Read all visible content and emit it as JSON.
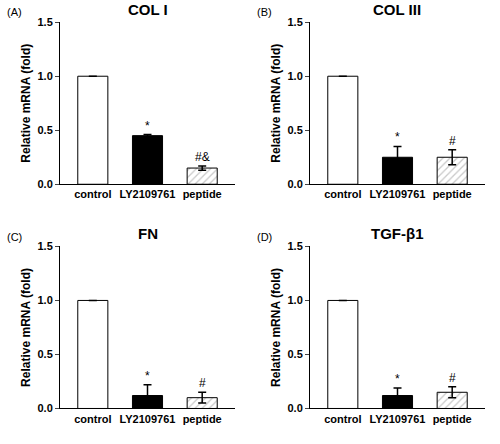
{
  "chart_data": [
    {
      "type": "bar",
      "label": "(A)",
      "title": "COL I",
      "y_label": "Relative mRNA (fold)",
      "categories": [
        "control",
        "LY2109761",
        "peptide"
      ],
      "values": [
        1.0,
        0.45,
        0.15
      ],
      "errors": [
        0,
        0.01,
        0.02
      ],
      "colors": [
        "#ffffff",
        "#000000",
        "#c8c8c8"
      ],
      "ylim": [
        0,
        1.5
      ],
      "yticks": [
        {
          "value": 0,
          "label": "0.0"
        },
        {
          "value": 0.5,
          "label": "0.5"
        },
        {
          "value": 1,
          "label": "1.0"
        },
        {
          "value": 1.5,
          "label": "1.5"
        }
      ],
      "grid": false,
      "annotations": [
        {
          "category": "LY2109761",
          "text": "*"
        },
        {
          "category": "peptide",
          "text": "#&"
        }
      ]
    },
    {
      "type": "bar",
      "label": "(B)",
      "title": "COL III",
      "y_label": "Relative mRNA (fold)",
      "categories": [
        "control",
        "LY2109761",
        "peptide"
      ],
      "values": [
        1.0,
        0.25,
        0.25
      ],
      "errors": [
        0,
        0.1,
        0.07
      ],
      "colors": [
        "#ffffff",
        "#000000",
        "#c8c8c8"
      ],
      "ylim": [
        0,
        1.5
      ],
      "yticks": [
        {
          "value": 0,
          "label": "0.0"
        },
        {
          "value": 0.5,
          "label": "0.5"
        },
        {
          "value": 1,
          "label": "1.0"
        },
        {
          "value": 1.5,
          "label": "1.5"
        }
      ],
      "grid": false,
      "annotations": [
        {
          "category": "LY2109761",
          "text": "*"
        },
        {
          "category": "peptide",
          "text": "#"
        }
      ]
    },
    {
      "type": "bar",
      "label": "(C)",
      "title": "FN",
      "y_label": "Relative mRNA (fold)",
      "categories": [
        "control",
        "LY2109761",
        "peptide"
      ],
      "values": [
        1.0,
        0.12,
        0.1
      ],
      "errors": [
        0,
        0.1,
        0.05
      ],
      "colors": [
        "#ffffff",
        "#000000",
        "#c8c8c8"
      ],
      "ylim": [
        0,
        1.5
      ],
      "yticks": [
        {
          "value": 0,
          "label": "0.0"
        },
        {
          "value": 0.5,
          "label": "0.5"
        },
        {
          "value": 1,
          "label": "1.0"
        },
        {
          "value": 1.5,
          "label": "1.5"
        }
      ],
      "grid": false,
      "annotations": [
        {
          "category": "LY2109761",
          "text": "*"
        },
        {
          "category": "peptide",
          "text": "#"
        }
      ]
    },
    {
      "type": "bar",
      "label": "(D)",
      "title": "TGF-β1",
      "y_label": "Relative mRNA (fold)",
      "categories": [
        "control",
        "LY2109761",
        "peptide"
      ],
      "values": [
        1.0,
        0.12,
        0.15
      ],
      "errors": [
        0,
        0.07,
        0.05
      ],
      "colors": [
        "#ffffff",
        "#000000",
        "#c8c8c8"
      ],
      "ylim": [
        0,
        1.5
      ],
      "yticks": [
        {
          "value": 0,
          "label": "0.0"
        },
        {
          "value": 0.5,
          "label": "0.5"
        },
        {
          "value": 1,
          "label": "1.0"
        },
        {
          "value": 1.5,
          "label": "1.5"
        }
      ],
      "grid": false,
      "annotations": [
        {
          "category": "LY2109761",
          "text": "*"
        },
        {
          "category": "peptide",
          "text": "#"
        }
      ]
    }
  ]
}
